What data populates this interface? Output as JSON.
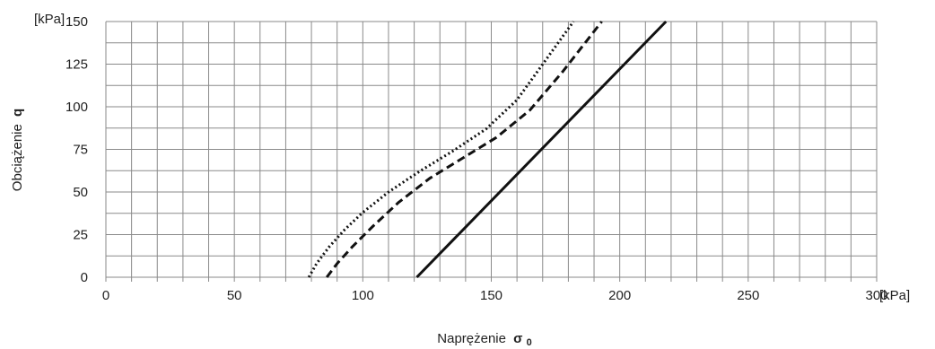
{
  "chart_data": {
    "type": "line",
    "title": "",
    "xlabel": "Naprężenie",
    "xlabel_symbol": "σ",
    "xlabel_subscript": "0",
    "ylabel": "Obciążenie",
    "ylabel_symbol": "q",
    "x_unit_label": "[kPa]",
    "y_unit_label": "[kPa]",
    "xlim": [
      0,
      300
    ],
    "ylim": [
      0,
      150
    ],
    "x_tick_labels": [
      "0",
      "50",
      "100",
      "150",
      "200",
      "250",
      "300"
    ],
    "y_tick_labels": [
      "0",
      "25",
      "50",
      "75",
      "100",
      "125",
      "150"
    ],
    "x_minor_step": 10,
    "y_minor_step": 12.5,
    "grid": true,
    "legend": "none",
    "series": [
      {
        "style": "dotted",
        "x": [
          79,
          82,
          87,
          93,
          100,
          110,
          122,
          135,
          148,
          160,
          171,
          182
        ],
        "y": [
          0,
          8,
          18,
          28,
          38,
          50,
          62,
          74,
          87,
          104,
          127,
          150
        ]
      },
      {
        "style": "dashed",
        "x": [
          86,
          90,
          96,
          104,
          114,
          126,
          139,
          152,
          165,
          178,
          193
        ],
        "y": [
          0,
          8,
          18,
          30,
          44,
          58,
          70,
          82,
          98,
          121,
          150
        ]
      },
      {
        "style": "solid",
        "x": [
          121,
          218
        ],
        "y": [
          0,
          150
        ]
      }
    ]
  }
}
